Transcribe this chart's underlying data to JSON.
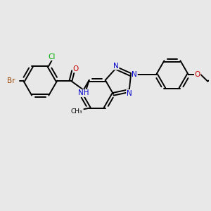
{
  "bg_color": "#e8e8e8",
  "bond_color": "#000000",
  "bond_width": 1.4,
  "atom_colors": {
    "C": "#000000",
    "N": "#0000cc",
    "O": "#cc0000",
    "Br": "#994400",
    "Cl": "#00aa00",
    "H": "#888888"
  },
  "figsize": [
    3.0,
    3.0
  ],
  "dpi": 100
}
